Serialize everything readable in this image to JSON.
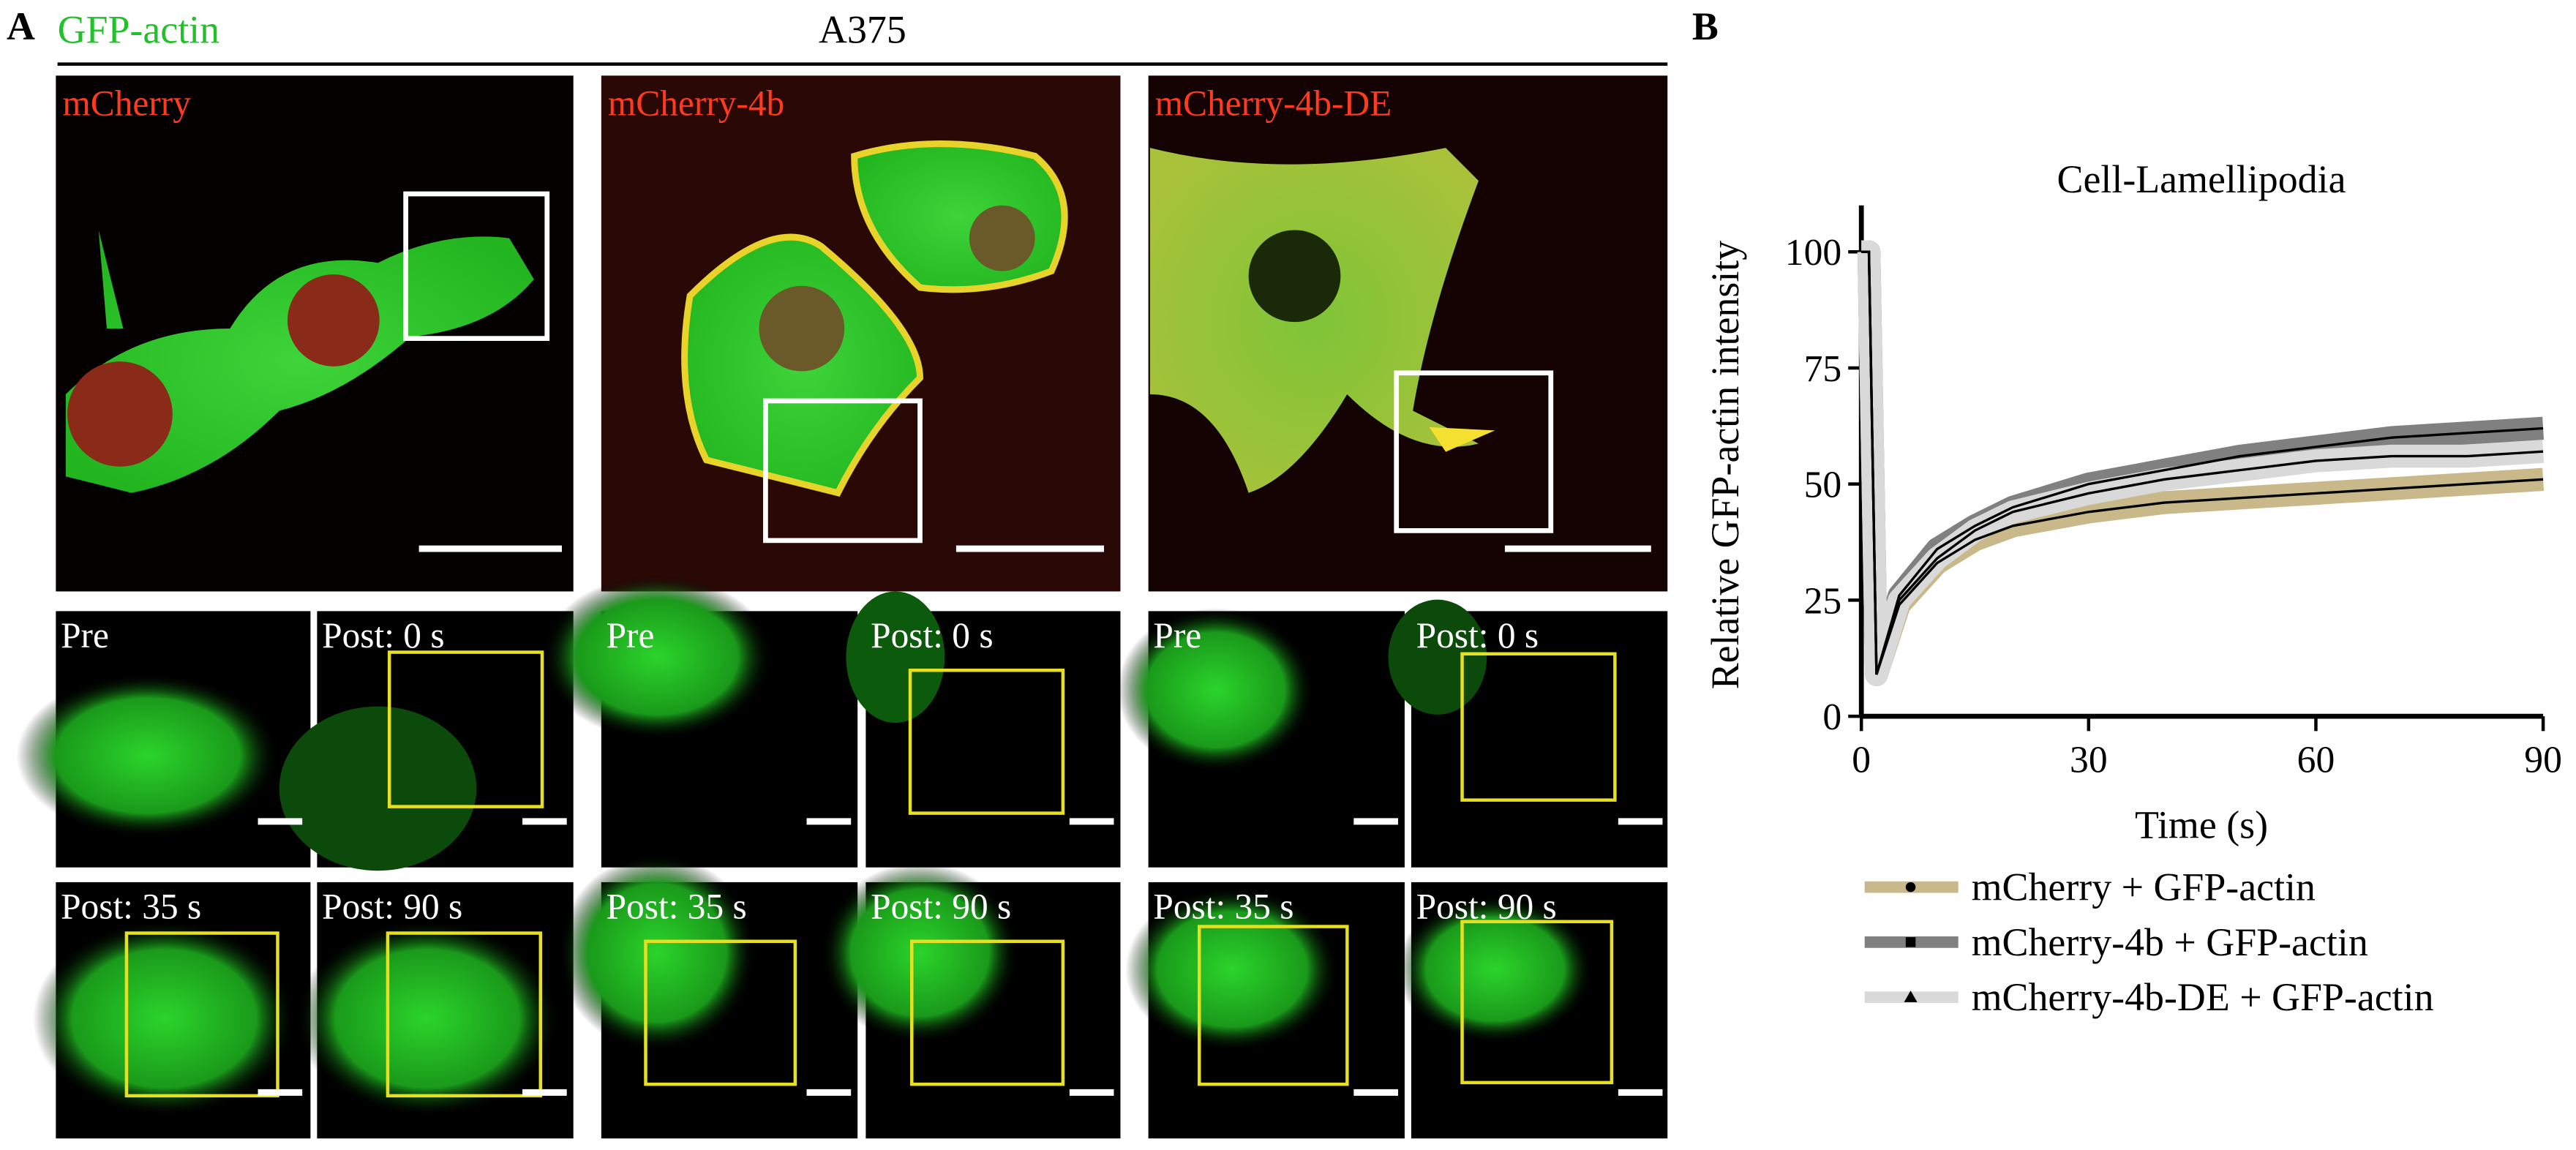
{
  "panel_a": {
    "label": "A",
    "stain": "GFP-actin",
    "cell_line": "A375",
    "columns": [
      "mCherry",
      "mCherry-4b",
      "mCherry-4b-DE"
    ],
    "timepoints": [
      "Pre",
      "Post: 0 s",
      "Post: 35 s",
      "Post: 90 s"
    ]
  },
  "chart_data": {
    "type": "line",
    "panel_label": "B",
    "title": "Cell-Lamellipodia",
    "x_label": "Time (s)",
    "y_label": "Relative GFP-actin intensity",
    "x": [
      0,
      1,
      2,
      5,
      10,
      15,
      20,
      30,
      40,
      50,
      60,
      70,
      80,
      90
    ],
    "series": [
      {
        "name": "mCherry + GFP-actin",
        "color": "#c9b98a",
        "marker": "circle",
        "values": [
          100,
          100,
          9,
          24,
          33,
          38,
          41,
          44,
          46,
          47,
          48,
          49,
          50,
          51
        ]
      },
      {
        "name": "mCherry-4b + GFP-actin",
        "color": "#808080",
        "marker": "square",
        "values": [
          100,
          100,
          9,
          26,
          36,
          41,
          45,
          50,
          53,
          56,
          58,
          60,
          61,
          62
        ]
      },
      {
        "name": "mCherry-4b-DE + GFP-actin",
        "color": "#d9d9d9",
        "marker": "triangle",
        "values": [
          100,
          100,
          9,
          25,
          34,
          40,
          44,
          48,
          51,
          53,
          55,
          56,
          56,
          57
        ]
      }
    ],
    "xlim": [
      0,
      90
    ],
    "xticks": [
      0,
      30,
      60,
      90
    ],
    "ylim": [
      0,
      110
    ],
    "yticks": [
      0,
      25,
      50,
      75,
      100
    ]
  }
}
